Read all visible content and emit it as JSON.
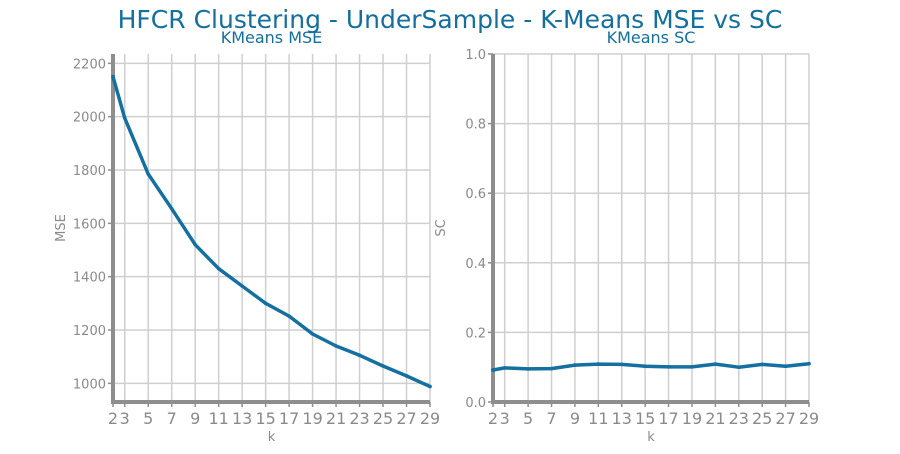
{
  "title": "HFCR Clustering - UnderSample - K-Means MSE vs SC",
  "colors": {
    "title": "#136f9e",
    "line": "#1470a0",
    "grid": "#cfcfcf",
    "axis": "#8e8e8e",
    "tick_text": "#8a8a8a"
  },
  "chart_data": [
    {
      "type": "line",
      "title": "KMeans MSE",
      "xlabel": "k",
      "ylabel": "MSE",
      "x": [
        2,
        3,
        5,
        7,
        9,
        11,
        13,
        15,
        17,
        19,
        21,
        23,
        25,
        27,
        29
      ],
      "values": [
        2150,
        1995,
        1785,
        1655,
        1520,
        1430,
        1365,
        1300,
        1252,
        1185,
        1140,
        1105,
        1065,
        1028,
        988
      ],
      "xticks": [
        2,
        3,
        5,
        7,
        9,
        11,
        13,
        15,
        17,
        19,
        21,
        23,
        25,
        27,
        29
      ],
      "yticks": [
        1000,
        1200,
        1400,
        1600,
        1800,
        2000,
        2200
      ],
      "xlim": [
        2,
        29
      ],
      "ylim": [
        930,
        2235
      ],
      "grid": true
    },
    {
      "type": "line",
      "title": "KMeans SC",
      "xlabel": "k",
      "ylabel": "SC",
      "x": [
        2,
        3,
        5,
        7,
        9,
        11,
        13,
        15,
        17,
        19,
        21,
        23,
        25,
        27,
        29
      ],
      "values": [
        0.092,
        0.098,
        0.095,
        0.096,
        0.106,
        0.109,
        0.108,
        0.103,
        0.101,
        0.101,
        0.109,
        0.1,
        0.108,
        0.103,
        0.11
      ],
      "xticks": [
        2,
        3,
        5,
        7,
        9,
        11,
        13,
        15,
        17,
        19,
        21,
        23,
        25,
        27,
        29
      ],
      "yticks": [
        0.0,
        0.2,
        0.4,
        0.6,
        0.8,
        1.0
      ],
      "ytick_labels": [
        "0.0",
        "0.2",
        "0.4",
        "0.6",
        "0.8",
        "1.0"
      ],
      "xlim": [
        2,
        29
      ],
      "ylim": [
        0,
        1
      ],
      "grid": true
    }
  ]
}
